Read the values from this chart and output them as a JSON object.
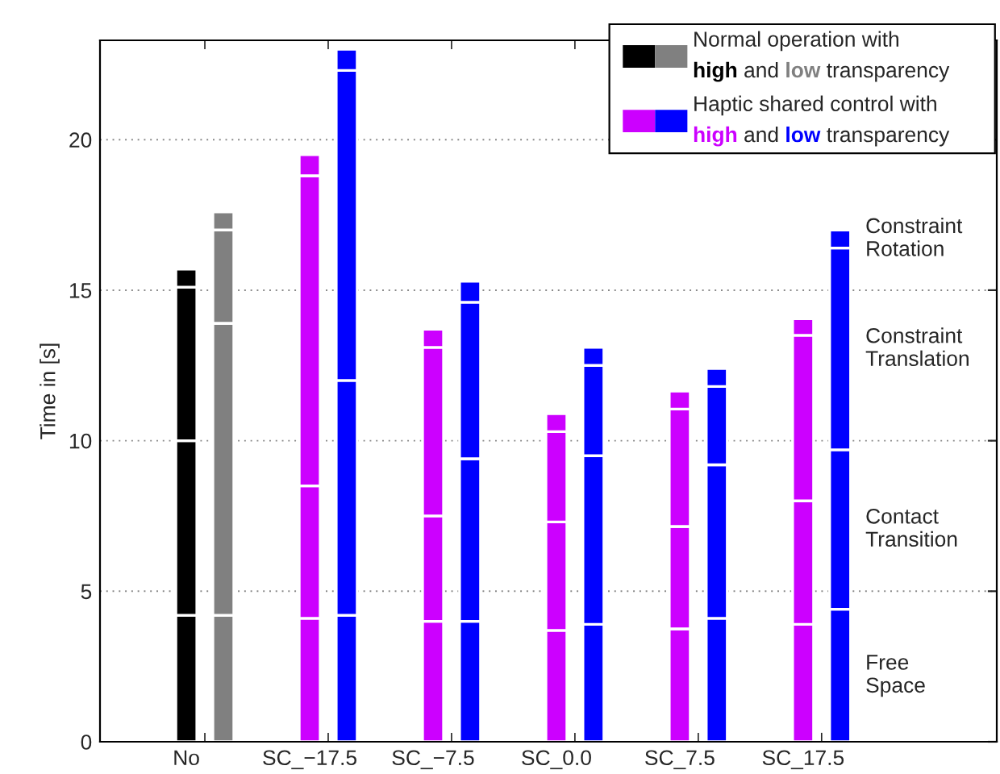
{
  "chart_data": {
    "type": "bar",
    "stacked": true,
    "ylabel": "Time in [s]",
    "categories": [
      "No",
      null,
      "SC_−17.5",
      null,
      "SC_−7.5",
      null,
      "SC_0.0",
      null,
      "SC_7.5",
      null,
      "SC_17.5",
      null
    ],
    "series": [
      {
        "name": "Free Space",
        "colors": [
          "#000000",
          "#808080",
          "#cc00ff",
          "#0000ff",
          "#cc00ff",
          "#0000ff",
          "#cc00ff",
          "#0000ff",
          "#cc00ff",
          "#0000ff",
          "#cc00ff",
          "#0000ff"
        ],
        "values": [
          4.2,
          4.2,
          4.1,
          4.2,
          4.0,
          4.0,
          3.7,
          3.9,
          3.75,
          4.1,
          3.9,
          4.4
        ]
      },
      {
        "name": "Contact Transition",
        "colors": [
          "#000000",
          "#808080",
          "#cc00ff",
          "#0000ff",
          "#cc00ff",
          "#0000ff",
          "#cc00ff",
          "#0000ff",
          "#cc00ff",
          "#0000ff",
          "#cc00ff",
          "#0000ff"
        ],
        "values": [
          5.8,
          9.7,
          4.4,
          7.8,
          3.5,
          5.4,
          3.6,
          5.6,
          3.4,
          5.1,
          4.1,
          5.3
        ]
      },
      {
        "name": "Constraint Translation",
        "colors": [
          "#000000",
          "#808080",
          "#cc00ff",
          "#0000ff",
          "#cc00ff",
          "#0000ff",
          "#cc00ff",
          "#0000ff",
          "#cc00ff",
          "#0000ff",
          "#cc00ff",
          "#0000ff"
        ],
        "values": [
          5.1,
          3.1,
          10.3,
          10.3,
          5.6,
          5.2,
          3.0,
          3.0,
          3.9,
          2.6,
          5.5,
          6.7
        ]
      },
      {
        "name": "Constraint Rotation",
        "colors": [
          "#000000",
          "#808080",
          "#cc00ff",
          "#0000ff",
          "#cc00ff",
          "#0000ff",
          "#cc00ff",
          "#0000ff",
          "#cc00ff",
          "#0000ff",
          "#cc00ff",
          "#0000ff"
        ],
        "values": [
          0.6,
          0.6,
          0.7,
          0.7,
          0.6,
          0.7,
          0.6,
          0.6,
          0.6,
          0.6,
          0.55,
          0.6
        ]
      }
    ],
    "ylim": [
      0,
      23.3
    ],
    "yticks": [
      0,
      5,
      10,
      15,
      20
    ],
    "grid": "y",
    "legend": "right",
    "annotations": [
      "Normal operation with high and low transparency",
      "Haptic shared control with high and low transparency"
    ]
  }
}
